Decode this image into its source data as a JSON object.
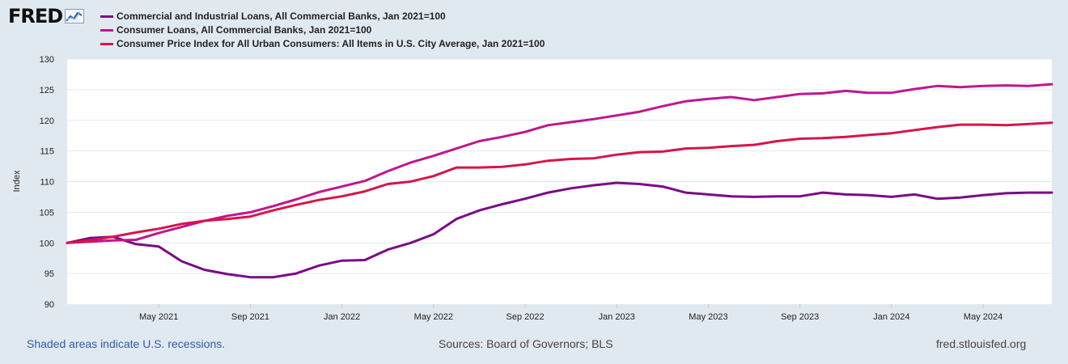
{
  "logo": {
    "text": "FRED"
  },
  "chart_data": {
    "type": "line",
    "title": "",
    "xlabel": "",
    "ylabel": "Index",
    "ylim": [
      90,
      130
    ],
    "yticks": [
      90,
      95,
      100,
      105,
      110,
      115,
      120,
      125,
      130
    ],
    "x_start": "Jan 2021",
    "x_end": "Aug 2024",
    "xtick_labels": [
      {
        "label": "May 2021",
        "month_index": 4
      },
      {
        "label": "Sep 2021",
        "month_index": 8
      },
      {
        "label": "Jan 2022",
        "month_index": 12
      },
      {
        "label": "May 2022",
        "month_index": 16
      },
      {
        "label": "Sep 2022",
        "month_index": 20
      },
      {
        "label": "Jan 2023",
        "month_index": 24
      },
      {
        "label": "May 2023",
        "month_index": 28
      },
      {
        "label": "Sep 2023",
        "month_index": 32
      },
      {
        "label": "Jan 2024",
        "month_index": 36
      },
      {
        "label": "May 2024",
        "month_index": 40
      }
    ],
    "grid": true,
    "series": [
      {
        "name": "Commercial and Industrial Loans, All Commercial Banks, Jan 2021=100",
        "color": "#7a0a85",
        "values": [
          100,
          100.8,
          101.0,
          99.8,
          99.4,
          97.0,
          95.6,
          94.9,
          94.4,
          94.4,
          95.0,
          96.3,
          97.1,
          97.2,
          98.9,
          100.0,
          101.4,
          103.9,
          105.3,
          106.3,
          107.2,
          108.2,
          108.9,
          109.4,
          109.8,
          109.6,
          109.2,
          108.2,
          107.9,
          107.6,
          107.5,
          107.6,
          107.6,
          108.2,
          107.9,
          107.8,
          107.5,
          107.9,
          107.2,
          107.4,
          107.8,
          108.1,
          108.2,
          108.2
        ]
      },
      {
        "name": "Consumer Loans, All Commercial Banks, Jan 2021=100",
        "color": "#c0168e",
        "values": [
          100,
          100.2,
          100.4,
          100.5,
          101.6,
          102.6,
          103.6,
          104.4,
          105.0,
          106.0,
          107.1,
          108.3,
          109.2,
          110.1,
          111.7,
          113.1,
          114.2,
          115.4,
          116.6,
          117.3,
          118.1,
          119.2,
          119.7,
          120.2,
          120.8,
          121.4,
          122.3,
          123.1,
          123.5,
          123.8,
          123.3,
          123.8,
          124.3,
          124.4,
          124.8,
          124.5,
          124.5,
          125.1,
          125.6,
          125.4,
          125.6,
          125.7,
          125.6,
          125.9
        ]
      },
      {
        "name": "Consumer Price Index for All Urban Consumers: All Items in U.S. City Average, Jan 2021=100",
        "color": "#d61549",
        "values": [
          100,
          100.4,
          101.0,
          101.7,
          102.3,
          103.1,
          103.6,
          103.9,
          104.3,
          105.3,
          106.2,
          107.0,
          107.6,
          108.4,
          109.6,
          110.0,
          110.9,
          112.3,
          112.3,
          112.4,
          112.8,
          113.4,
          113.7,
          113.8,
          114.4,
          114.8,
          114.9,
          115.4,
          115.5,
          115.8,
          116.0,
          116.6,
          117.0,
          117.1,
          117.3,
          117.6,
          117.9,
          118.4,
          118.9,
          119.3,
          119.3,
          119.2,
          119.4,
          119.6
        ]
      }
    ]
  },
  "footer": {
    "recession_note": "Shaded areas indicate U.S. recessions.",
    "sources": "Sources: Board of Governors; BLS",
    "site": "fred.stlouisfed.org"
  }
}
